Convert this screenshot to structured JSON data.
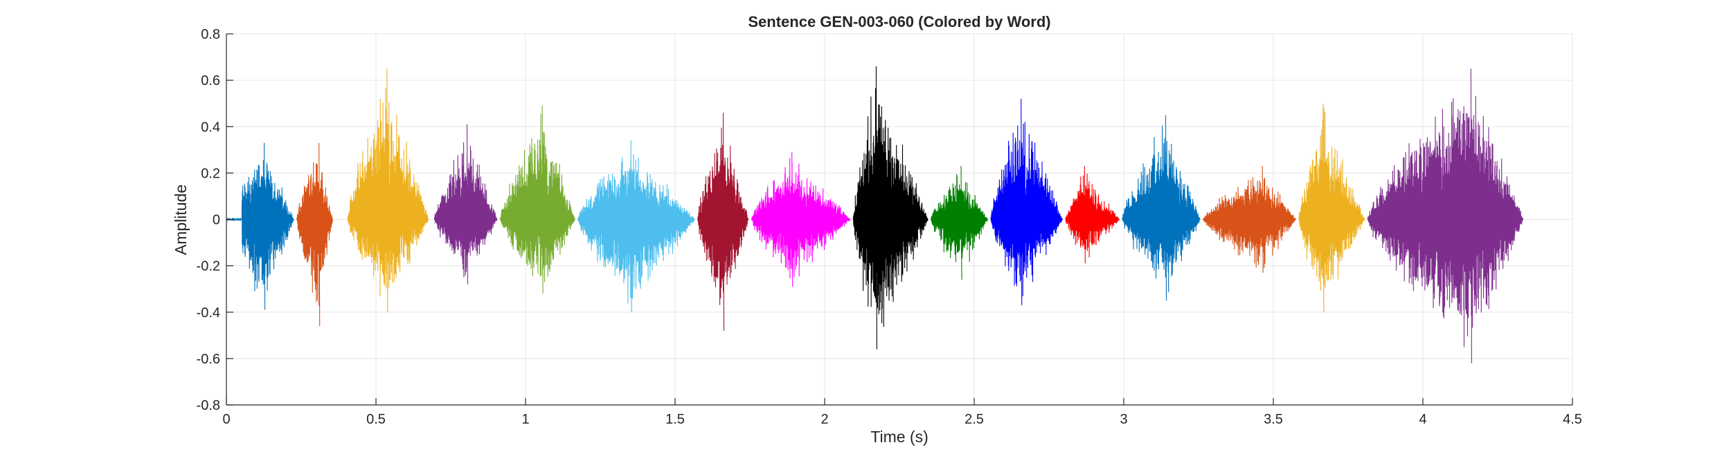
{
  "chart_data": {
    "type": "line",
    "title": "Sentence GEN-003-060 (Colored by Word)",
    "xlabel": "Time (s)",
    "ylabel": "Amplitude",
    "xlim": [
      0,
      4.5
    ],
    "ylim": [
      -0.8,
      0.8
    ],
    "xticks": [
      0,
      0.5,
      1,
      1.5,
      2,
      2.5,
      3,
      3.5,
      4,
      4.5
    ],
    "xtick_labels": [
      "0",
      "0.5",
      "1",
      "1.5",
      "2",
      "2.5",
      "3",
      "3.5",
      "4",
      "4.5"
    ],
    "yticks": [
      -0.8,
      -0.6,
      -0.4,
      -0.2,
      0,
      0.2,
      0.4,
      0.6,
      0.8
    ],
    "ytick_labels": [
      "-0.8",
      "-0.6",
      "-0.4",
      "-0.2",
      "0",
      "0.2",
      "0.4",
      "0.6",
      "0.8"
    ],
    "grid": true,
    "legend": "none",
    "segments": [
      {
        "start": 0.0,
        "end": 0.225,
        "color": "#0072BD",
        "max": 0.33,
        "min": -0.39
      },
      {
        "start": 0.235,
        "end": 0.355,
        "color": "#D95319",
        "max": 0.33,
        "min": -0.46
      },
      {
        "start": 0.405,
        "end": 0.675,
        "color": "#EDB120",
        "max": 0.65,
        "min": -0.4
      },
      {
        "start": 0.695,
        "end": 0.905,
        "color": "#7E2F8E",
        "max": 0.41,
        "min": -0.28
      },
      {
        "start": 0.915,
        "end": 1.165,
        "color": "#77AC30",
        "max": 0.49,
        "min": -0.32
      },
      {
        "start": 1.175,
        "end": 1.565,
        "color": "#4DBEEE",
        "max": 0.34,
        "min": -0.4
      },
      {
        "start": 1.575,
        "end": 1.745,
        "color": "#A2142F",
        "max": 0.46,
        "min": -0.48
      },
      {
        "start": 1.755,
        "end": 2.085,
        "color": "#FF00FF",
        "max": 0.29,
        "min": -0.29
      },
      {
        "start": 2.095,
        "end": 2.345,
        "color": "#000000",
        "max": 0.66,
        "min": -0.56
      },
      {
        "start": 2.355,
        "end": 2.545,
        "color": "#008000",
        "max": 0.23,
        "min": -0.26
      },
      {
        "start": 2.555,
        "end": 2.795,
        "color": "#0000FF",
        "max": 0.52,
        "min": -0.37
      },
      {
        "start": 2.805,
        "end": 2.985,
        "color": "#FF0000",
        "max": 0.23,
        "min": -0.19
      },
      {
        "start": 2.995,
        "end": 3.255,
        "color": "#0072BD",
        "max": 0.45,
        "min": -0.35
      },
      {
        "start": 3.265,
        "end": 3.575,
        "color": "#D95319",
        "max": 0.23,
        "min": -0.23
      },
      {
        "start": 3.585,
        "end": 3.805,
        "color": "#EDB120",
        "max": 0.5,
        "min": -0.4
      },
      {
        "start": 3.815,
        "end": 4.335,
        "color": "#7E2F8E",
        "max": 0.65,
        "min": -0.62
      }
    ]
  }
}
